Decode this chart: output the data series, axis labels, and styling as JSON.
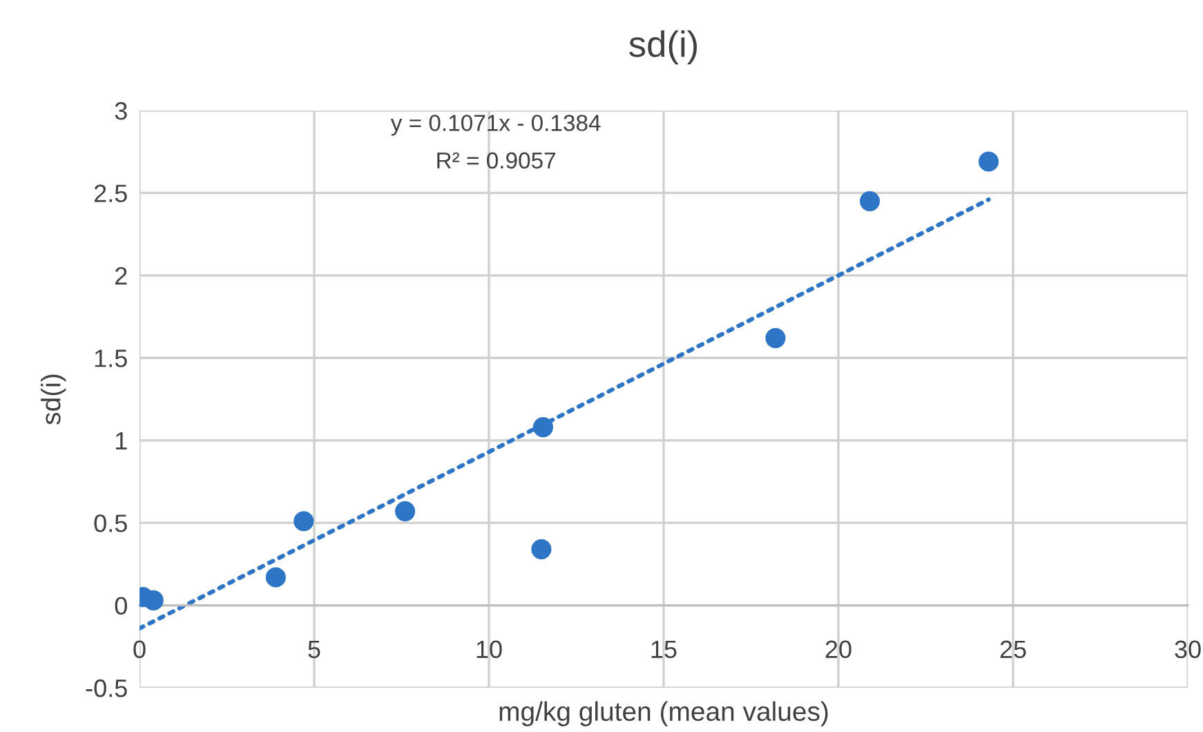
{
  "chart_data": {
    "type": "scatter",
    "title": "sd(i)",
    "xlabel": "mg/kg gluten (mean values)",
    "ylabel": "sd(i)",
    "xlim": [
      0,
      30
    ],
    "xticks": [
      0,
      5,
      10,
      15,
      20,
      25,
      30
    ],
    "ylim": [
      -0.5,
      3
    ],
    "yticks": [
      -0.5,
      0,
      0.5,
      1,
      1.5,
      2,
      2.5,
      3
    ],
    "grid": true,
    "marker": "circle",
    "series": [
      {
        "color": "#2e75c6",
        "x": [
          0.1,
          0.4,
          3.9,
          4.7,
          7.6,
          11.55,
          11.5,
          18.2,
          20.9,
          24.3
        ],
        "values": [
          0.05,
          0.03,
          0.17,
          0.51,
          0.57,
          1.08,
          0.34,
          1.62,
          2.45,
          2.69
        ]
      },
      {
        "type": "line",
        "color": "#2e75c6",
        "line_style": "dotted",
        "marker": "none",
        "x": [
          0,
          24.3
        ],
        "values": [
          -0.14,
          2.46
        ]
      }
    ],
    "annotations": [
      "y = 0.1071x - 0.1384",
      "R² = 0.9057"
    ]
  }
}
